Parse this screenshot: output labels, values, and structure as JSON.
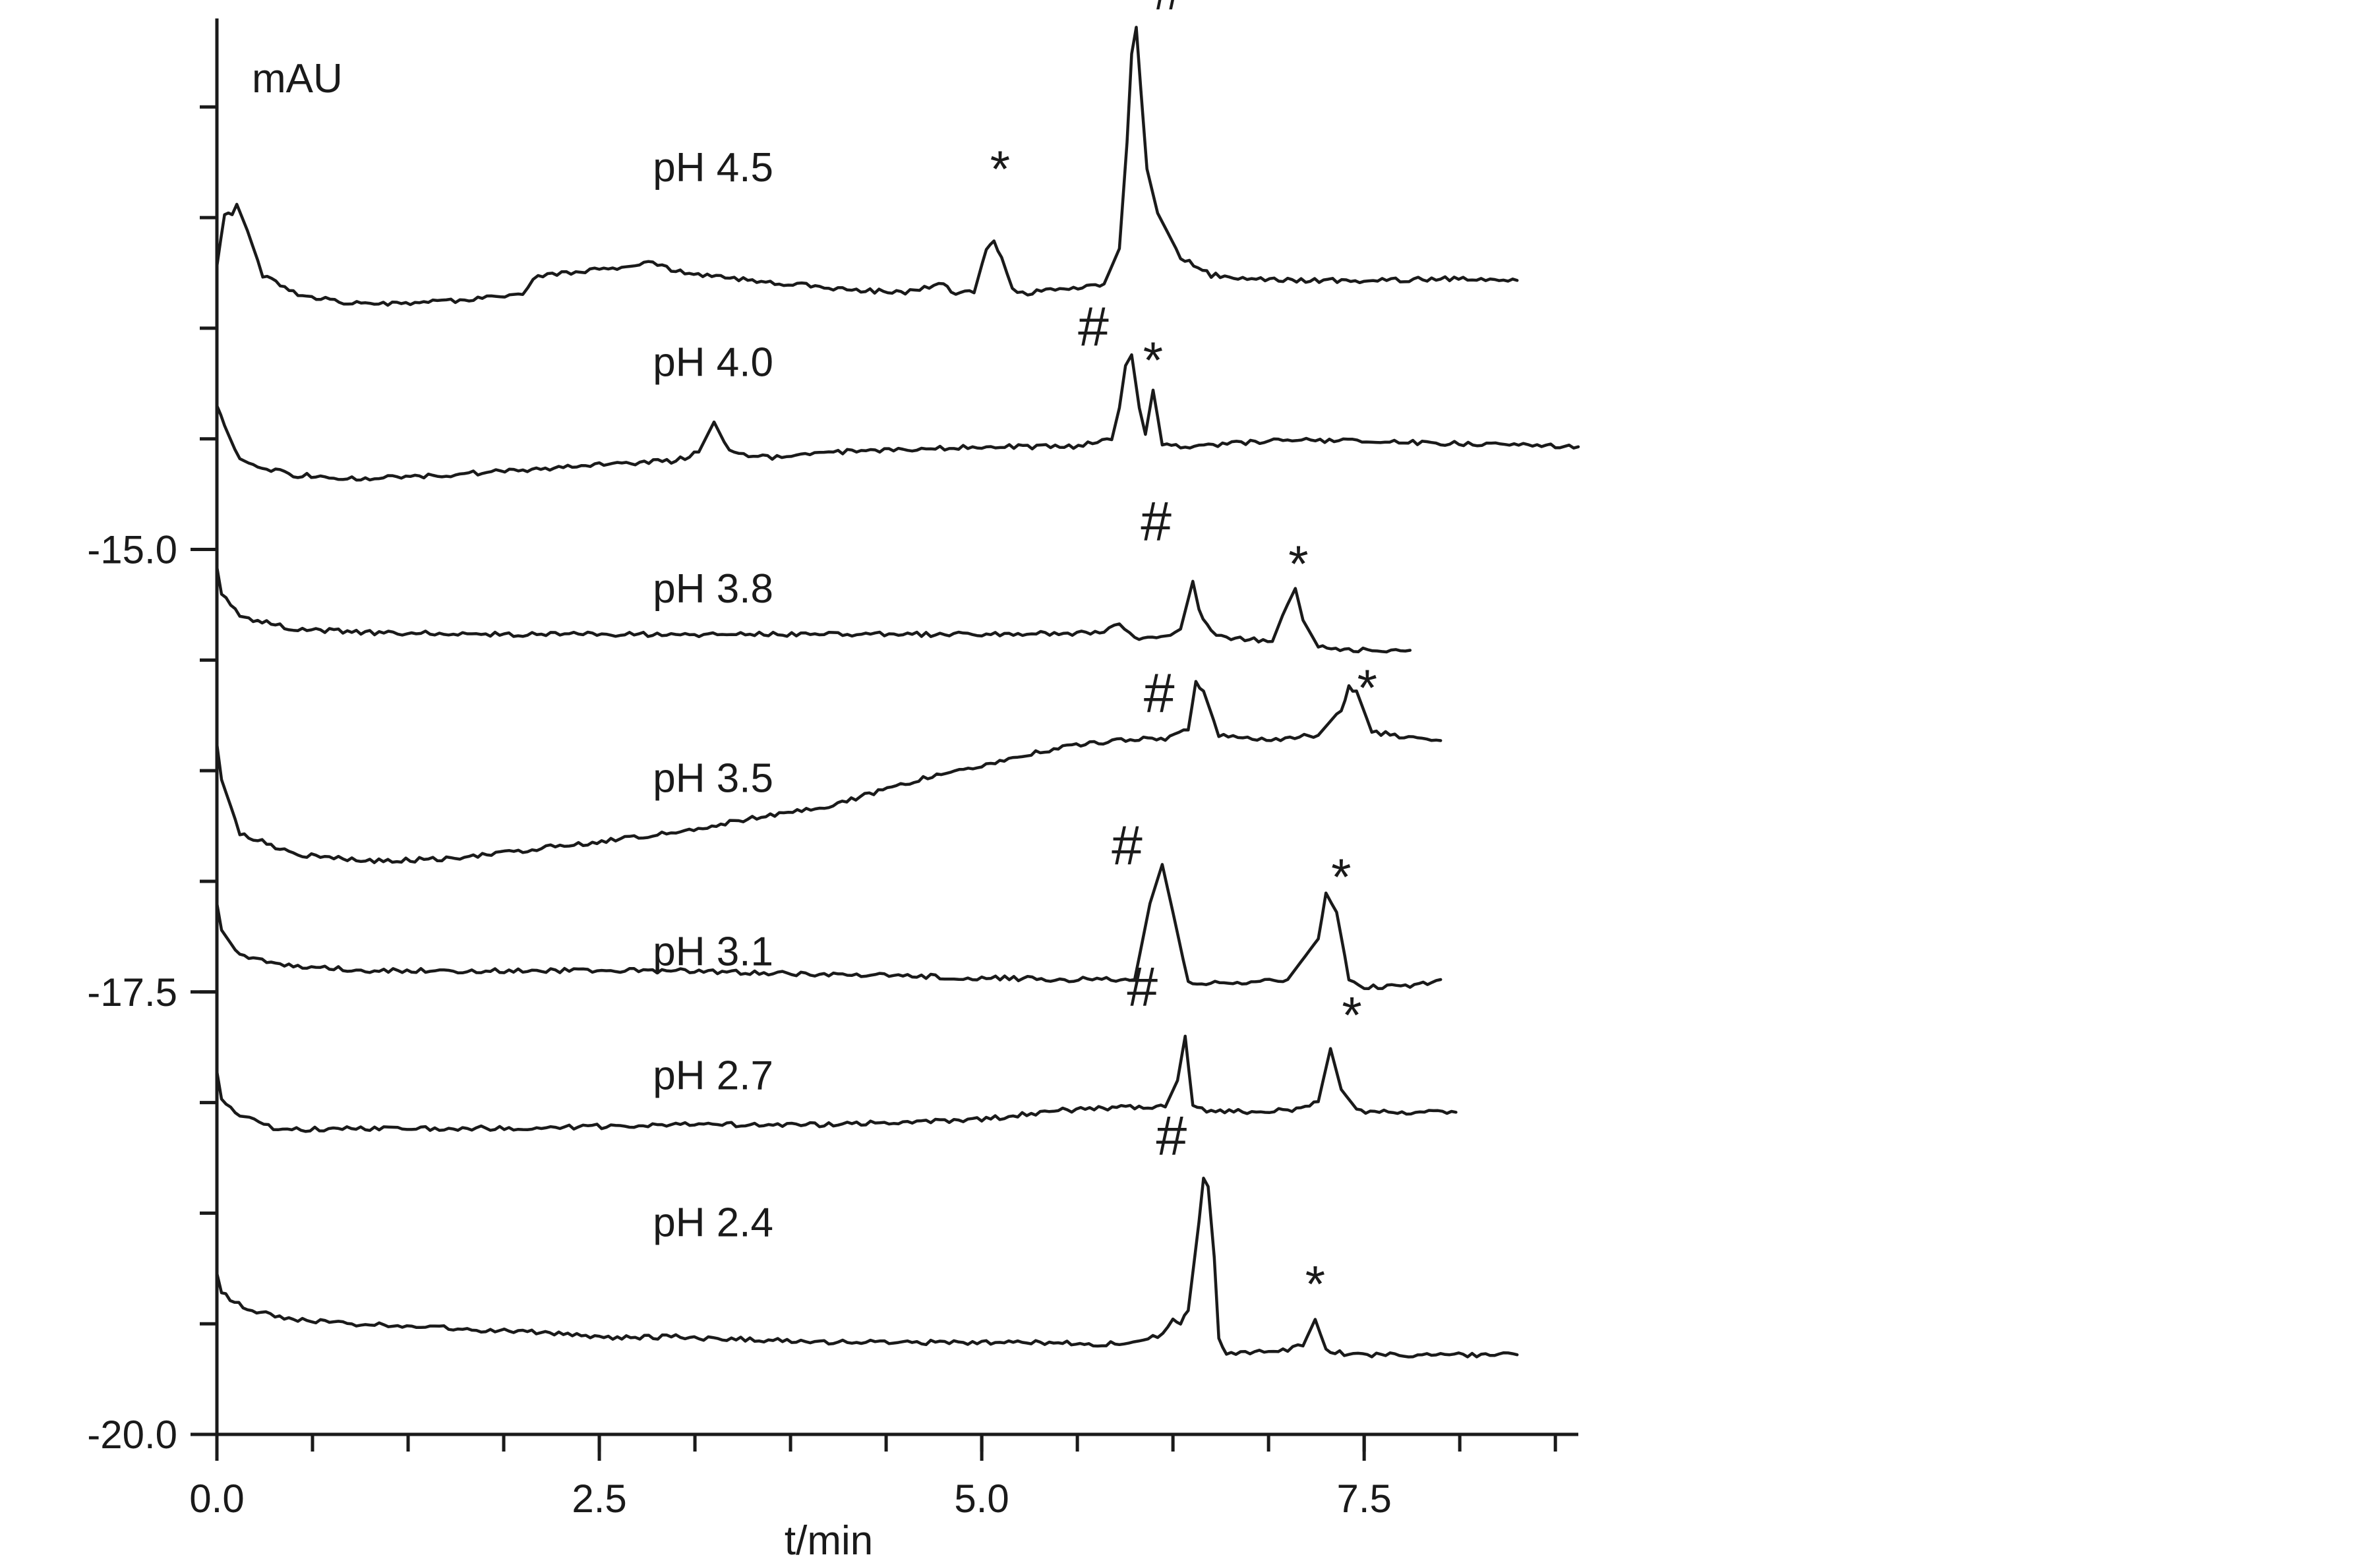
{
  "chart_data": {
    "type": "line",
    "ylabel": "mAU",
    "xlabel": "t/min",
    "xlim": [
      0.0,
      8.9
    ],
    "ylim": [
      -20.0,
      -12.0
    ],
    "x_ticks": [
      "0.0",
      "2.5",
      "5.0",
      "7.5"
    ],
    "x_tick_values": [
      0.0,
      2.5,
      5.0,
      7.5
    ],
    "y_ticks": [
      "-15.0",
      "-17.5",
      "-20.0"
    ],
    "y_tick_values": [
      -15.0,
      -17.5,
      -20.0
    ],
    "series": [
      {
        "name": "pH 4.5",
        "x": [
          0.0,
          0.05,
          0.1,
          0.13,
          0.2,
          0.3,
          0.5,
          0.8,
          1.0,
          1.5,
          2.0,
          2.1,
          2.5,
          2.85,
          3.0,
          3.5,
          4.0,
          4.3,
          4.5,
          4.75,
          4.8,
          4.95,
          5.03,
          5.08,
          5.13,
          5.2,
          5.3,
          5.6,
          5.8,
          5.9,
          5.95,
          5.98,
          6.01,
          6.04,
          6.08,
          6.15,
          6.3,
          6.5,
          7.0,
          7.5,
          8.0,
          8.5
        ],
        "y": [
          -13.4,
          -13.1,
          -13.1,
          -13.05,
          -13.2,
          -13.45,
          -13.55,
          -13.6,
          -13.62,
          -13.6,
          -13.55,
          -13.45,
          -13.42,
          -13.38,
          -13.43,
          -13.48,
          -13.52,
          -13.54,
          -13.55,
          -13.5,
          -13.55,
          -13.55,
          -13.3,
          -13.27,
          -13.35,
          -13.53,
          -13.55,
          -13.52,
          -13.5,
          -13.3,
          -12.7,
          -12.2,
          -12.05,
          -12.4,
          -12.85,
          -13.1,
          -13.35,
          -13.45,
          -13.48,
          -13.48,
          -13.47,
          -13.48
        ]
      },
      {
        "name": "pH 4.0",
        "x": [
          0.0,
          0.05,
          0.15,
          0.5,
          1.0,
          1.5,
          2.0,
          2.5,
          3.0,
          3.15,
          3.25,
          3.35,
          3.6,
          4.0,
          5.0,
          5.6,
          5.85,
          5.9,
          5.94,
          5.98,
          6.03,
          6.07,
          6.12,
          6.18,
          6.3,
          7.0,
          8.0,
          8.9
        ],
        "y": [
          -14.2,
          -14.3,
          -14.5,
          -14.58,
          -14.6,
          -14.58,
          -14.55,
          -14.52,
          -14.5,
          -14.45,
          -14.28,
          -14.45,
          -14.48,
          -14.45,
          -14.42,
          -14.42,
          -14.38,
          -14.2,
          -13.95,
          -13.9,
          -14.2,
          -14.35,
          -14.1,
          -14.4,
          -14.42,
          -14.38,
          -14.4,
          -14.42
        ]
      },
      {
        "name": "pH 3.8",
        "x": [
          0.0,
          0.03,
          0.15,
          0.5,
          1.0,
          2.0,
          3.0,
          4.0,
          5.0,
          5.8,
          5.9,
          6.0,
          6.2,
          6.3,
          6.38,
          6.42,
          6.5,
          6.6,
          6.9,
          7.0,
          7.05,
          7.1,
          7.2,
          7.4,
          7.8
        ],
        "y": [
          -15.1,
          -15.25,
          -15.38,
          -15.45,
          -15.47,
          -15.48,
          -15.48,
          -15.48,
          -15.48,
          -15.47,
          -15.42,
          -15.5,
          -15.5,
          -15.45,
          -15.18,
          -15.35,
          -15.47,
          -15.5,
          -15.52,
          -15.3,
          -15.22,
          -15.4,
          -15.55,
          -15.57,
          -15.57
        ]
      },
      {
        "name": "pH 3.5",
        "x": [
          0.0,
          0.03,
          0.15,
          0.5,
          1.0,
          1.5,
          2.0,
          3.0,
          3.5,
          4.0,
          4.5,
          5.0,
          5.5,
          6.0,
          6.2,
          6.35,
          6.4,
          6.45,
          6.55,
          6.8,
          7.2,
          7.35,
          7.4,
          7.45,
          7.55,
          7.7,
          8.0
        ],
        "y": [
          -16.1,
          -16.3,
          -16.6,
          -16.72,
          -16.76,
          -16.75,
          -16.7,
          -16.6,
          -16.52,
          -16.45,
          -16.32,
          -16.22,
          -16.12,
          -16.07,
          -16.07,
          -16.02,
          -15.75,
          -15.8,
          -16.05,
          -16.08,
          -16.05,
          -15.9,
          -15.78,
          -15.8,
          -16.03,
          -16.05,
          -16.08
        ]
      },
      {
        "name": "pH 3.1",
        "x": [
          0.0,
          0.03,
          0.15,
          0.5,
          1.0,
          2.0,
          3.0,
          4.0,
          5.0,
          5.6,
          6.0,
          6.1,
          6.18,
          6.25,
          6.35,
          6.7,
          7.0,
          7.2,
          7.25,
          7.32,
          7.4,
          7.5,
          7.8,
          8.0
        ],
        "y": [
          -17.0,
          -17.15,
          -17.3,
          -17.35,
          -17.38,
          -17.38,
          -17.38,
          -17.4,
          -17.42,
          -17.43,
          -17.43,
          -17.0,
          -16.78,
          -17.05,
          -17.45,
          -17.45,
          -17.43,
          -17.2,
          -16.95,
          -17.05,
          -17.42,
          -17.47,
          -17.47,
          -17.43
        ]
      },
      {
        "name": "pH 2.7",
        "x": [
          0.0,
          0.03,
          0.15,
          0.4,
          1.0,
          2.0,
          3.0,
          4.0,
          5.0,
          5.5,
          6.0,
          6.2,
          6.28,
          6.33,
          6.38,
          6.5,
          7.0,
          7.2,
          7.28,
          7.35,
          7.45,
          7.6,
          8.1
        ],
        "y": [
          -17.95,
          -18.1,
          -18.2,
          -18.28,
          -18.27,
          -18.27,
          -18.25,
          -18.25,
          -18.22,
          -18.17,
          -18.15,
          -18.15,
          -18.0,
          -17.75,
          -18.15,
          -18.18,
          -18.17,
          -18.12,
          -17.82,
          -18.05,
          -18.17,
          -18.18,
          -18.18
        ]
      },
      {
        "name": "pH 2.4",
        "x": [
          0.0,
          0.03,
          0.2,
          0.5,
          1.0,
          2.0,
          2.5,
          3.0,
          4.0,
          5.0,
          5.5,
          5.7,
          5.9,
          6.15,
          6.25,
          6.3,
          6.35,
          6.42,
          6.45,
          6.48,
          6.52,
          6.55,
          6.6,
          7.0,
          7.1,
          7.18,
          7.25,
          7.4,
          8.0,
          8.5
        ],
        "y": [
          -19.1,
          -19.2,
          -19.3,
          -19.35,
          -19.38,
          -19.42,
          -19.45,
          -19.45,
          -19.48,
          -19.48,
          -19.48,
          -19.5,
          -19.48,
          -19.45,
          -19.35,
          -19.38,
          -19.3,
          -18.8,
          -18.55,
          -18.6,
          -19.0,
          -19.45,
          -19.55,
          -19.52,
          -19.5,
          -19.35,
          -19.52,
          -19.55,
          -19.55,
          -19.55
        ]
      }
    ],
    "labels": [
      {
        "text": "pH 4.5",
        "x": 2.85,
        "y": -12.92
      },
      {
        "text": "pH 4.0",
        "x": 2.85,
        "y": -14.02
      },
      {
        "text": "pH 3.8",
        "x": 2.85,
        "y": -15.3
      },
      {
        "text": "pH 3.5",
        "x": 2.85,
        "y": -16.37
      },
      {
        "text": "pH 3.1",
        "x": 2.85,
        "y": -17.35
      },
      {
        "text": "pH 2.7",
        "x": 2.85,
        "y": -18.05
      },
      {
        "text": "pH 2.4",
        "x": 2.85,
        "y": -18.88
      }
    ],
    "markers": [
      {
        "text": "*",
        "x": 5.12,
        "y": -12.95
      },
      {
        "text": "#",
        "x": 6.22,
        "y": -11.95
      },
      {
        "text": "#",
        "x": 5.73,
        "y": -13.85
      },
      {
        "text": "*",
        "x": 6.12,
        "y": -14.03
      },
      {
        "text": "#",
        "x": 6.14,
        "y": -14.95
      },
      {
        "text": "*",
        "x": 7.07,
        "y": -15.18
      },
      {
        "text": "#",
        "x": 6.16,
        "y": -15.92
      },
      {
        "text": "*",
        "x": 7.52,
        "y": -15.88
      },
      {
        "text": "#",
        "x": 5.95,
        "y": -16.78
      },
      {
        "text": "*",
        "x": 7.35,
        "y": -16.95
      },
      {
        "text": "#",
        "x": 6.05,
        "y": -17.58
      },
      {
        "text": "*",
        "x": 7.42,
        "y": -17.73
      },
      {
        "text": "#",
        "x": 6.24,
        "y": -18.42
      },
      {
        "text": "*",
        "x": 7.18,
        "y": -19.25
      }
    ]
  },
  "colors": {
    "axis": "#1a1a1a",
    "trace": "#1a1a1a",
    "background": "#ffffff"
  }
}
